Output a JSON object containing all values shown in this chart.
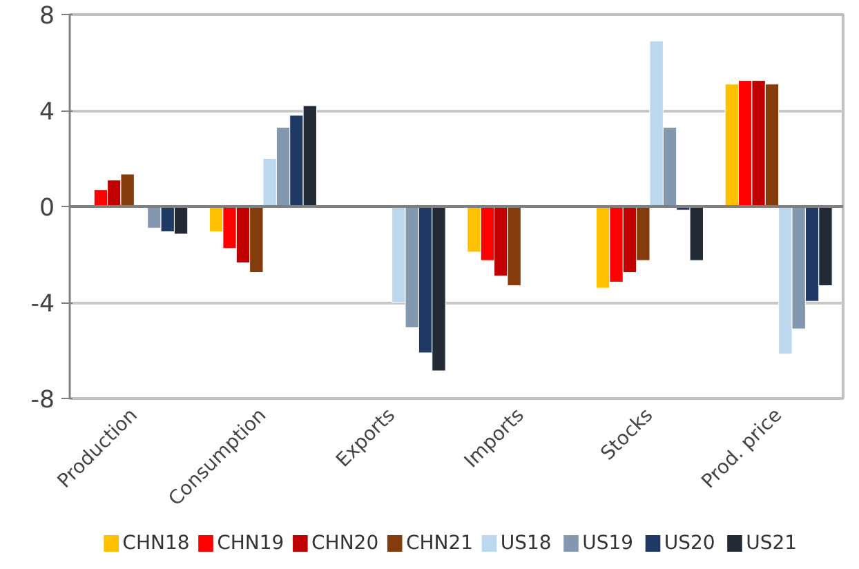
{
  "chart_data": {
    "type": "bar",
    "categories": [
      "Production",
      "Consumption",
      "Exports",
      "Imports",
      "Stocks",
      "Prod. price"
    ],
    "ylim": [
      -8,
      8
    ],
    "yticks": [
      -8,
      -4,
      0,
      4,
      8
    ],
    "grid": "y",
    "legend": "bottom",
    "series": [
      {
        "name": "CHN18",
        "color": "#ffc000",
        "values": [
          null,
          -1.05,
          null,
          -1.9,
          -3.4,
          5.1
        ]
      },
      {
        "name": "CHN19",
        "color": "#ff0000",
        "values": [
          0.7,
          -1.75,
          null,
          -2.25,
          -3.15,
          5.25
        ]
      },
      {
        "name": "CHN20",
        "color": "#c00000",
        "values": [
          1.1,
          -2.35,
          null,
          -2.9,
          -2.75,
          5.25
        ]
      },
      {
        "name": "CHN21",
        "color": "#843c0c",
        "values": [
          1.35,
          -2.75,
          null,
          -3.3,
          -2.25,
          5.1
        ]
      },
      {
        "name": "US18",
        "color": "#bdd7ee",
        "values": [
          null,
          2.0,
          -4.0,
          null,
          6.9,
          -6.15
        ]
      },
      {
        "name": "US19",
        "color": "#8497b0",
        "values": [
          -0.9,
          3.3,
          -5.05,
          null,
          3.3,
          -5.1
        ]
      },
      {
        "name": "US20",
        "color": "#203864",
        "values": [
          -1.05,
          3.8,
          -6.1,
          null,
          -0.15,
          -3.95
        ]
      },
      {
        "name": "US21",
        "color": "#222a35",
        "values": [
          -1.15,
          4.2,
          -6.85,
          null,
          -2.25,
          -3.3
        ]
      }
    ]
  }
}
